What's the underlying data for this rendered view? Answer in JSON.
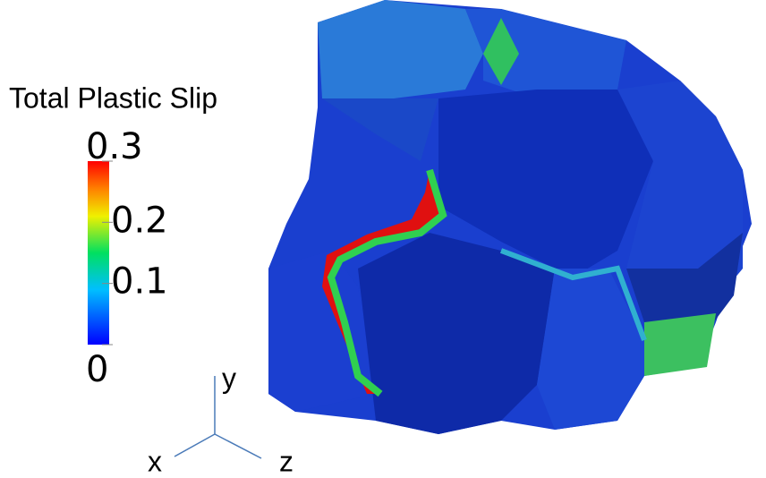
{
  "colorbar": {
    "title": "Total Plastic Slip",
    "lim": [
      0,
      0.3
    ],
    "ticks": [
      0,
      0.1,
      0.2,
      0.3
    ]
  },
  "axes": {
    "x": "x",
    "y": "y",
    "z": "z"
  }
}
